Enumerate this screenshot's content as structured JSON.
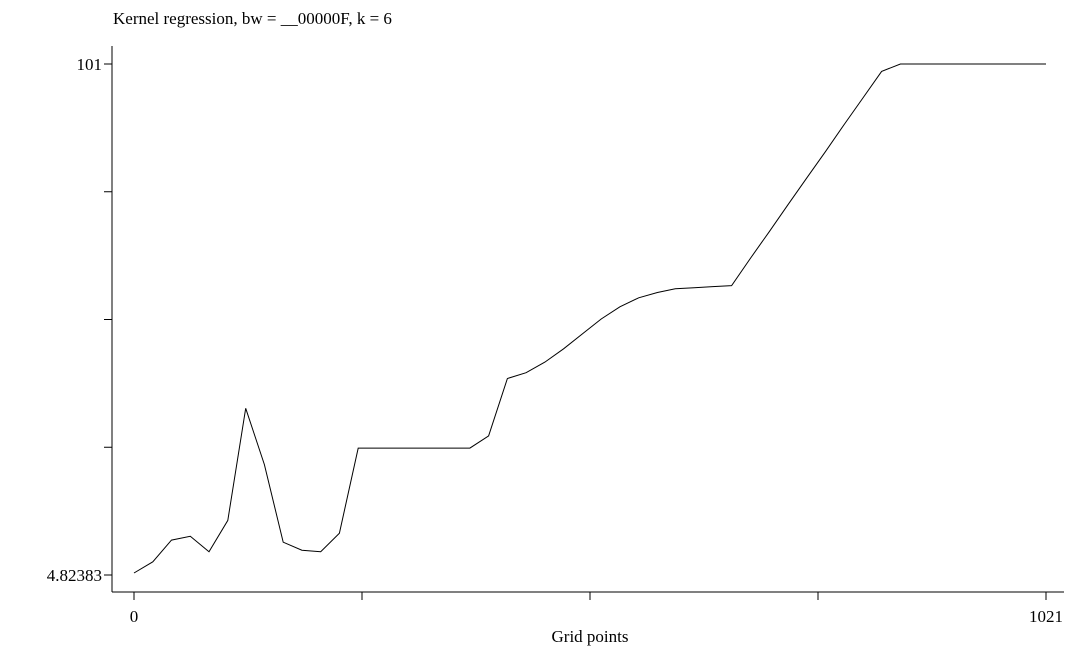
{
  "chart_data": {
    "type": "line",
    "title": "Kernel regression, bw = __00000F, k = 6",
    "xlabel": "Grid points",
    "ylabel": "",
    "xlim": [
      0,
      1021
    ],
    "ylim": [
      4.82383,
      101
    ],
    "x_ticks": [
      0,
      255.25,
      510.5,
      765.75,
      1021
    ],
    "x_tick_labels": [
      "0",
      "",
      "",
      "",
      "1021"
    ],
    "y_ticks": [
      4.82383,
      28.868,
      52.912,
      76.956,
      101
    ],
    "y_tick_labels": [
      "4.82383",
      "",
      "",
      "",
      "101"
    ],
    "grid": false,
    "series": [
      {
        "color": "#000000",
        "x": [
          0,
          21,
          42,
          63,
          84,
          105,
          125,
          146,
          167,
          188,
          209,
          230,
          251,
          272,
          293,
          314,
          335,
          356,
          376,
          397,
          418,
          439,
          460,
          481,
          502,
          523,
          544,
          565,
          586,
          606,
          627,
          648,
          669,
          690,
          711,
          732,
          753,
          774,
          795,
          816,
          837,
          858,
          879,
          900,
          921,
          942,
          963,
          984,
          1005,
          1021
        ],
        "y": [
          5.2,
          7.3,
          11.4,
          12.1,
          9.2,
          15.1,
          36.2,
          25.6,
          11.0,
          9.5,
          9.2,
          12.7,
          28.7,
          28.7,
          28.7,
          28.7,
          28.7,
          28.7,
          28.7,
          31.0,
          41.8,
          42.9,
          44.9,
          47.4,
          50.2,
          53.0,
          55.3,
          57.0,
          58.0,
          58.7,
          58.9,
          59.1,
          59.3,
          64.4,
          69.4,
          74.5,
          79.5,
          84.5,
          89.6,
          94.6,
          99.6,
          101,
          101,
          101,
          101,
          101,
          101,
          101,
          101,
          101
        ]
      }
    ]
  }
}
